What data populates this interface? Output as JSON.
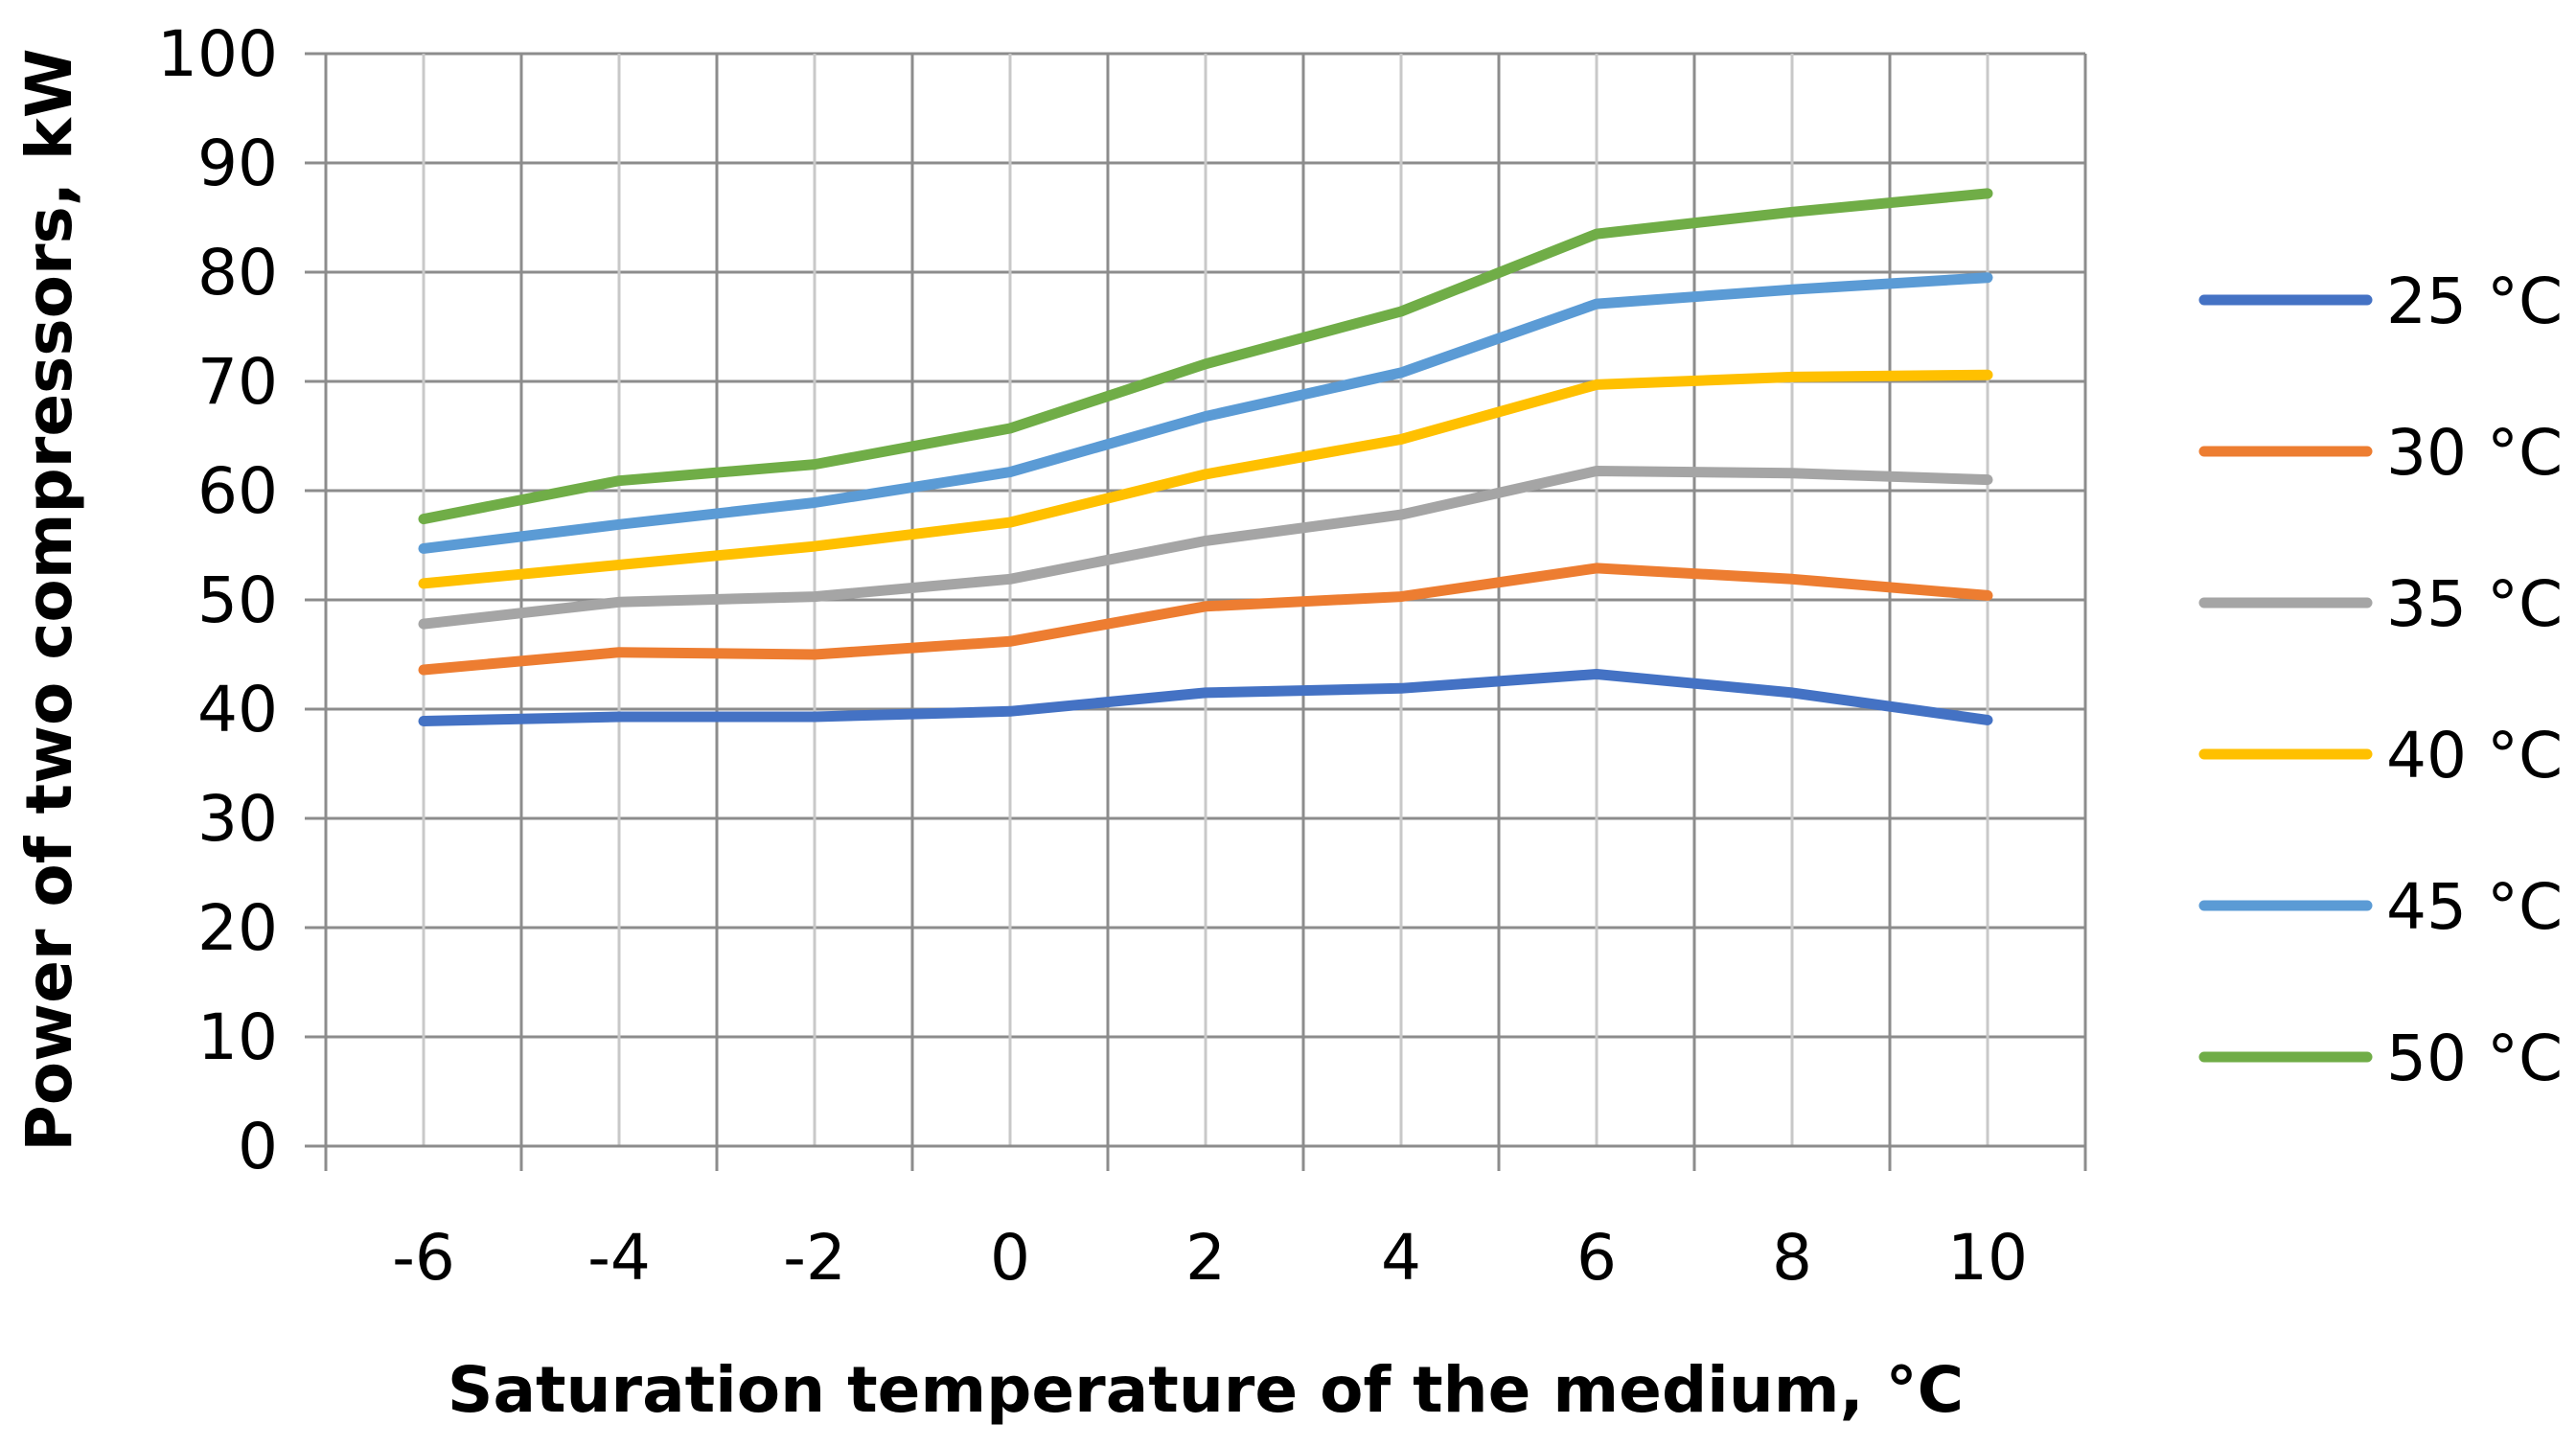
{
  "chart_data": {
    "type": "line",
    "title": "",
    "xlabel": "Saturation temperature of the medium, °C",
    "ylabel": "Power of two compressors, kW",
    "x": [
      -6,
      -4,
      -2,
      0,
      2,
      4,
      6,
      8,
      10
    ],
    "x_tick_labels": [
      "-6",
      "-4",
      "-2",
      "0",
      "2",
      "4",
      "6",
      "8",
      "10"
    ],
    "ylim": [
      0,
      100
    ],
    "y_ticks": [
      0,
      10,
      20,
      30,
      40,
      50,
      60,
      70,
      80,
      90,
      100
    ],
    "y_tick_labels": [
      "0",
      "10",
      "20",
      "30",
      "40",
      "50",
      "60",
      "70",
      "80",
      "90",
      "100"
    ],
    "grid": true,
    "legend_position": "right",
    "series": [
      {
        "name": "25 °C",
        "color": "#4472C4",
        "values": [
          38.9,
          39.3,
          39.3,
          39.8,
          41.5,
          41.9,
          43.2,
          41.5,
          39.0
        ]
      },
      {
        "name": "30 °C",
        "color": "#ED7D31",
        "values": [
          43.6,
          45.2,
          45.0,
          46.2,
          49.4,
          50.3,
          52.9,
          51.9,
          50.4
        ]
      },
      {
        "name": "35 °C",
        "color": "#A5A5A5",
        "values": [
          47.8,
          49.8,
          50.3,
          51.9,
          55.4,
          57.8,
          61.8,
          61.6,
          61.0
        ]
      },
      {
        "name": "40 °C",
        "color": "#FFC000",
        "values": [
          51.5,
          53.2,
          54.9,
          57.1,
          61.5,
          64.7,
          69.7,
          70.4,
          70.6
        ]
      },
      {
        "name": "45 °C",
        "color": "#5B9BD5",
        "values": [
          54.7,
          56.9,
          58.9,
          61.7,
          66.8,
          70.8,
          77.1,
          78.4,
          79.5
        ]
      },
      {
        "name": "50 °C",
        "color": "#70AD47",
        "values": [
          57.4,
          60.9,
          62.4,
          65.7,
          71.6,
          76.4,
          83.5,
          85.5,
          87.2
        ]
      }
    ]
  }
}
